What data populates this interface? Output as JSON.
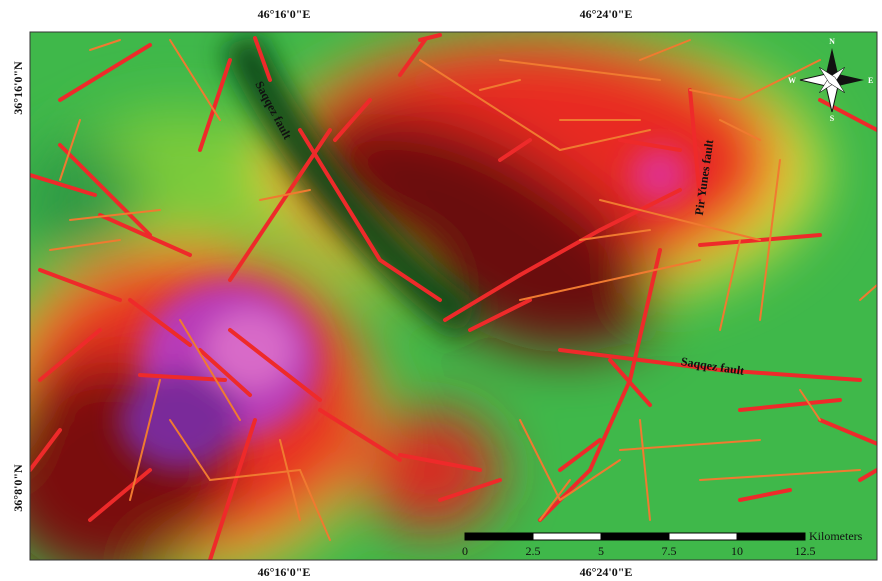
{
  "map": {
    "top_labels": [
      "46°16'0\"E",
      "46°24'0\"E"
    ],
    "bottom_labels": [
      "46°16'0\"E",
      "46°24'0\"E"
    ],
    "left_labels": [
      "36°16'0\"N",
      "36°8'0\"N"
    ],
    "fault_labels": [
      "Saqqez fault",
      "Pir Yunes fault",
      "Saqqez fault"
    ],
    "compass": {
      "north": "N",
      "east": "E",
      "south": "S",
      "west": "W"
    },
    "scale_bar": {
      "unit": "Kilometers",
      "ticks": [
        "0",
        "2.5",
        "5",
        "7.5",
        "10",
        "12.5"
      ]
    }
  }
}
